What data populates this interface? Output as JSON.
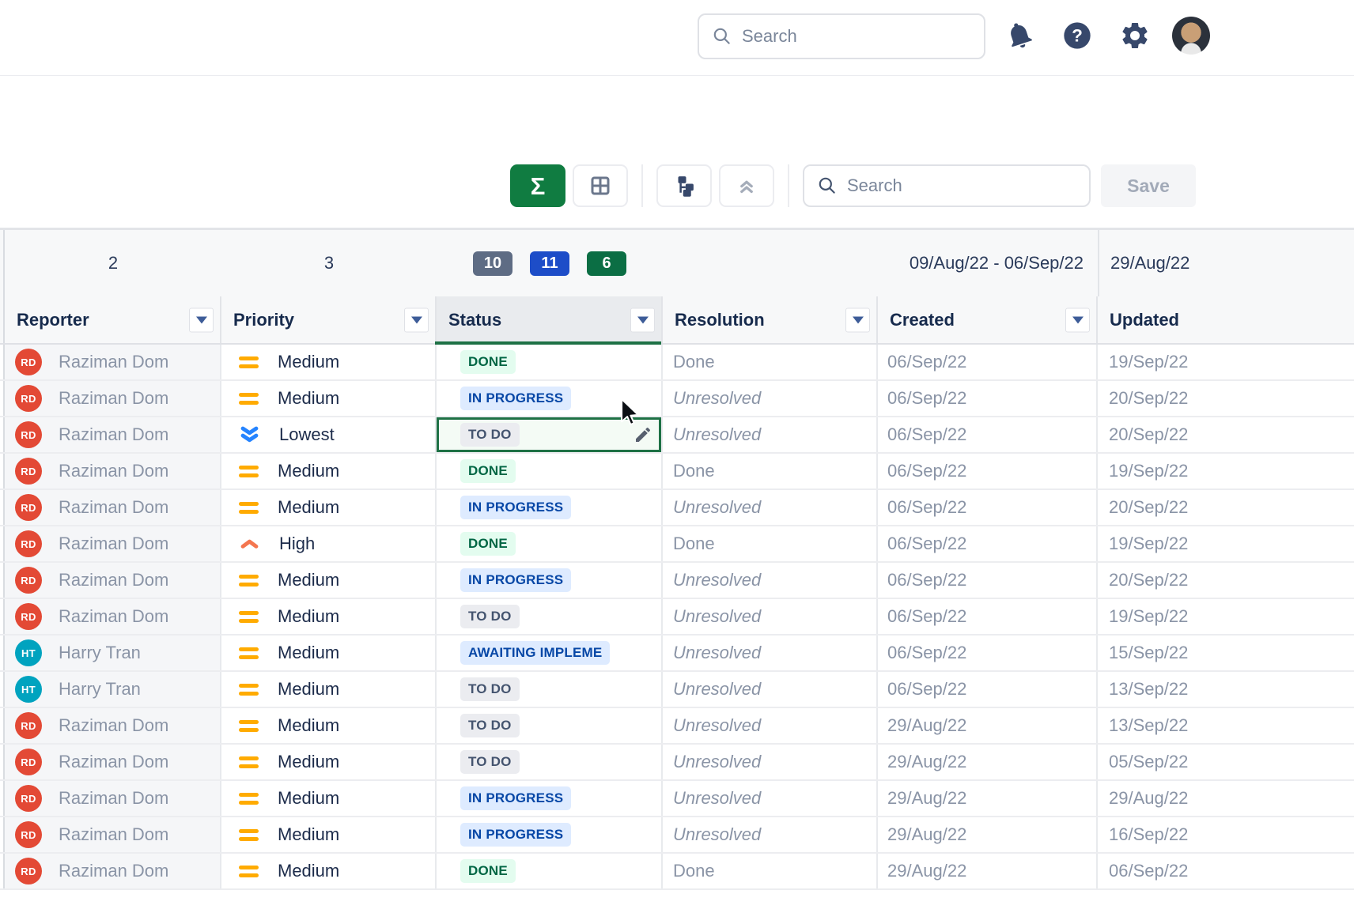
{
  "topbar": {
    "search_placeholder": "Search",
    "icons": [
      "search-icon",
      "bell-icon",
      "help-filled-icon",
      "gear-icon",
      "user-avatar"
    ]
  },
  "page_actions": {
    "icons": [
      "help-outline-icon",
      "export-icon",
      "gear-outline-icon"
    ]
  },
  "toolbar": {
    "buttons": [
      "sum-toggle",
      "grid-view",
      "hierarchy-view",
      "collapse-all"
    ],
    "sum_active_color": "#107C41",
    "search_placeholder": "Search",
    "save_label": "Save"
  },
  "summary_row": {
    "reporter_count": "2",
    "priority_count": "3",
    "status_badges": [
      {
        "label": "10",
        "color": "#5E6C84"
      },
      {
        "label": "11",
        "color": "#1D4DC8"
      },
      {
        "label": "6",
        "color": "#0B6E44"
      }
    ],
    "created_range": "09/Aug/22 - 06/Sep/22",
    "updated_summary": "29/Aug/22"
  },
  "columns": [
    {
      "label": "Reporter",
      "has_dropdown": true,
      "selected": false
    },
    {
      "label": "Priority",
      "has_dropdown": true,
      "selected": false
    },
    {
      "label": "Status",
      "has_dropdown": true,
      "selected": true
    },
    {
      "label": "Resolution",
      "has_dropdown": true,
      "selected": false
    },
    {
      "label": "Created",
      "has_dropdown": true,
      "selected": false
    },
    {
      "label": "Updated",
      "has_dropdown": false,
      "selected": false
    }
  ],
  "status_styles": {
    "done": {
      "bg": "#E3FCEF",
      "text": "#006644"
    },
    "inprogress": {
      "bg": "#DEEBFF",
      "text": "#0747A6"
    },
    "todo": {
      "bg": "#EBECF0",
      "text": "#44546F"
    },
    "awaiting": {
      "bg": "#DEEBFF",
      "text": "#0747A6"
    }
  },
  "priority_colors": {
    "medium": "#FFAB00",
    "lowest": "#2684FF",
    "high": "#F4764F"
  },
  "selection": {
    "row_index": 2,
    "column": "Status",
    "border_color": "#1E7145"
  },
  "rows": [
    {
      "reporter": "Raziman Dom",
      "initials": "RD",
      "avatar_color": "#E34935",
      "priority": "Medium",
      "priority_level": "medium",
      "status": "DONE",
      "status_type": "done",
      "selected": false,
      "resolution": "Done",
      "resolution_italic": false,
      "created": "06/Sep/22",
      "updated": "19/Sep/22"
    },
    {
      "reporter": "Raziman Dom",
      "initials": "RD",
      "avatar_color": "#E34935",
      "priority": "Medium",
      "priority_level": "medium",
      "status": "IN PROGRESS",
      "status_type": "inprogress",
      "selected": false,
      "resolution": "Unresolved",
      "resolution_italic": true,
      "created": "06/Sep/22",
      "updated": "20/Sep/22"
    },
    {
      "reporter": "Raziman Dom",
      "initials": "RD",
      "avatar_color": "#E34935",
      "priority": "Lowest",
      "priority_level": "lowest",
      "status": "TO DO",
      "status_type": "todo",
      "selected": true,
      "resolution": "Unresolved",
      "resolution_italic": true,
      "created": "06/Sep/22",
      "updated": "20/Sep/22"
    },
    {
      "reporter": "Raziman Dom",
      "initials": "RD",
      "avatar_color": "#E34935",
      "priority": "Medium",
      "priority_level": "medium",
      "status": "DONE",
      "status_type": "done",
      "selected": false,
      "resolution": "Done",
      "resolution_italic": false,
      "created": "06/Sep/22",
      "updated": "19/Sep/22"
    },
    {
      "reporter": "Raziman Dom",
      "initials": "RD",
      "avatar_color": "#E34935",
      "priority": "Medium",
      "priority_level": "medium",
      "status": "IN PROGRESS",
      "status_type": "inprogress",
      "selected": false,
      "resolution": "Unresolved",
      "resolution_italic": true,
      "created": "06/Sep/22",
      "updated": "20/Sep/22"
    },
    {
      "reporter": "Raziman Dom",
      "initials": "RD",
      "avatar_color": "#E34935",
      "priority": "High",
      "priority_level": "high",
      "status": "DONE",
      "status_type": "done",
      "selected": false,
      "resolution": "Done",
      "resolution_italic": false,
      "created": "06/Sep/22",
      "updated": "19/Sep/22"
    },
    {
      "reporter": "Raziman Dom",
      "initials": "RD",
      "avatar_color": "#E34935",
      "priority": "Medium",
      "priority_level": "medium",
      "status": "IN PROGRESS",
      "status_type": "inprogress",
      "selected": false,
      "resolution": "Unresolved",
      "resolution_italic": true,
      "created": "06/Sep/22",
      "updated": "20/Sep/22"
    },
    {
      "reporter": "Raziman Dom",
      "initials": "RD",
      "avatar_color": "#E34935",
      "priority": "Medium",
      "priority_level": "medium",
      "status": "TO DO",
      "status_type": "todo",
      "selected": false,
      "resolution": "Unresolved",
      "resolution_italic": true,
      "created": "06/Sep/22",
      "updated": "19/Sep/22"
    },
    {
      "reporter": "Harry Tran",
      "initials": "HT",
      "avatar_color": "#00A3BF",
      "priority": "Medium",
      "priority_level": "medium",
      "status": "AWAITING IMPLEME",
      "status_type": "awaiting",
      "selected": false,
      "resolution": "Unresolved",
      "resolution_italic": true,
      "created": "06/Sep/22",
      "updated": "15/Sep/22"
    },
    {
      "reporter": "Harry Tran",
      "initials": "HT",
      "avatar_color": "#00A3BF",
      "priority": "Medium",
      "priority_level": "medium",
      "status": "TO DO",
      "status_type": "todo",
      "selected": false,
      "resolution": "Unresolved",
      "resolution_italic": true,
      "created": "06/Sep/22",
      "updated": "13/Sep/22"
    },
    {
      "reporter": "Raziman Dom",
      "initials": "RD",
      "avatar_color": "#E34935",
      "priority": "Medium",
      "priority_level": "medium",
      "status": "TO DO",
      "status_type": "todo",
      "selected": false,
      "resolution": "Unresolved",
      "resolution_italic": true,
      "created": "29/Aug/22",
      "updated": "13/Sep/22"
    },
    {
      "reporter": "Raziman Dom",
      "initials": "RD",
      "avatar_color": "#E34935",
      "priority": "Medium",
      "priority_level": "medium",
      "status": "TO DO",
      "status_type": "todo",
      "selected": false,
      "resolution": "Unresolved",
      "resolution_italic": true,
      "created": "29/Aug/22",
      "updated": "05/Sep/22"
    },
    {
      "reporter": "Raziman Dom",
      "initials": "RD",
      "avatar_color": "#E34935",
      "priority": "Medium",
      "priority_level": "medium",
      "status": "IN PROGRESS",
      "status_type": "inprogress",
      "selected": false,
      "resolution": "Unresolved",
      "resolution_italic": true,
      "created": "29/Aug/22",
      "updated": "29/Aug/22"
    },
    {
      "reporter": "Raziman Dom",
      "initials": "RD",
      "avatar_color": "#E34935",
      "priority": "Medium",
      "priority_level": "medium",
      "status": "IN PROGRESS",
      "status_type": "inprogress",
      "selected": false,
      "resolution": "Unresolved",
      "resolution_italic": true,
      "created": "29/Aug/22",
      "updated": "16/Sep/22"
    },
    {
      "reporter": "Raziman Dom",
      "initials": "RD",
      "avatar_color": "#E34935",
      "priority": "Medium",
      "priority_level": "medium",
      "status": "DONE",
      "status_type": "done",
      "selected": false,
      "resolution": "Done",
      "resolution_italic": false,
      "created": "29/Aug/22",
      "updated": "06/Sep/22"
    }
  ]
}
